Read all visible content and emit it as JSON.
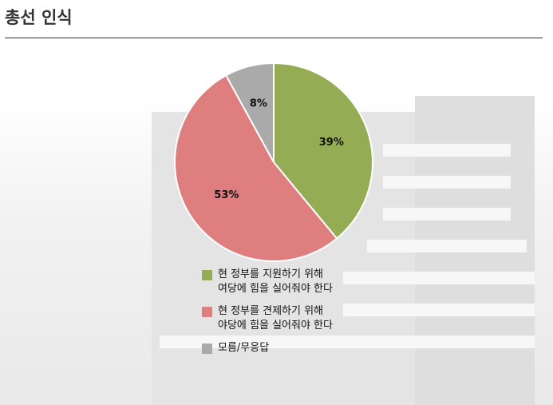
{
  "page": {
    "title": "총선 인식"
  },
  "chart_data": {
    "type": "pie",
    "title": "",
    "slices": [
      {
        "label": "현 정부를 지원하기 위해\n여당에 힘을 실어줘야 한다",
        "value": 39,
        "display": "39%",
        "color": "#94ad55"
      },
      {
        "label": "현 정부를 견제하기 위해\n야당에 힘을 실어줘야 한다",
        "value": 53,
        "display": "53%",
        "color": "#de7e7e"
      },
      {
        "label": "모름/무응답",
        "value": 8,
        "display": "8%",
        "color": "#aaaaaa"
      }
    ],
    "legend_position": "bottom"
  }
}
